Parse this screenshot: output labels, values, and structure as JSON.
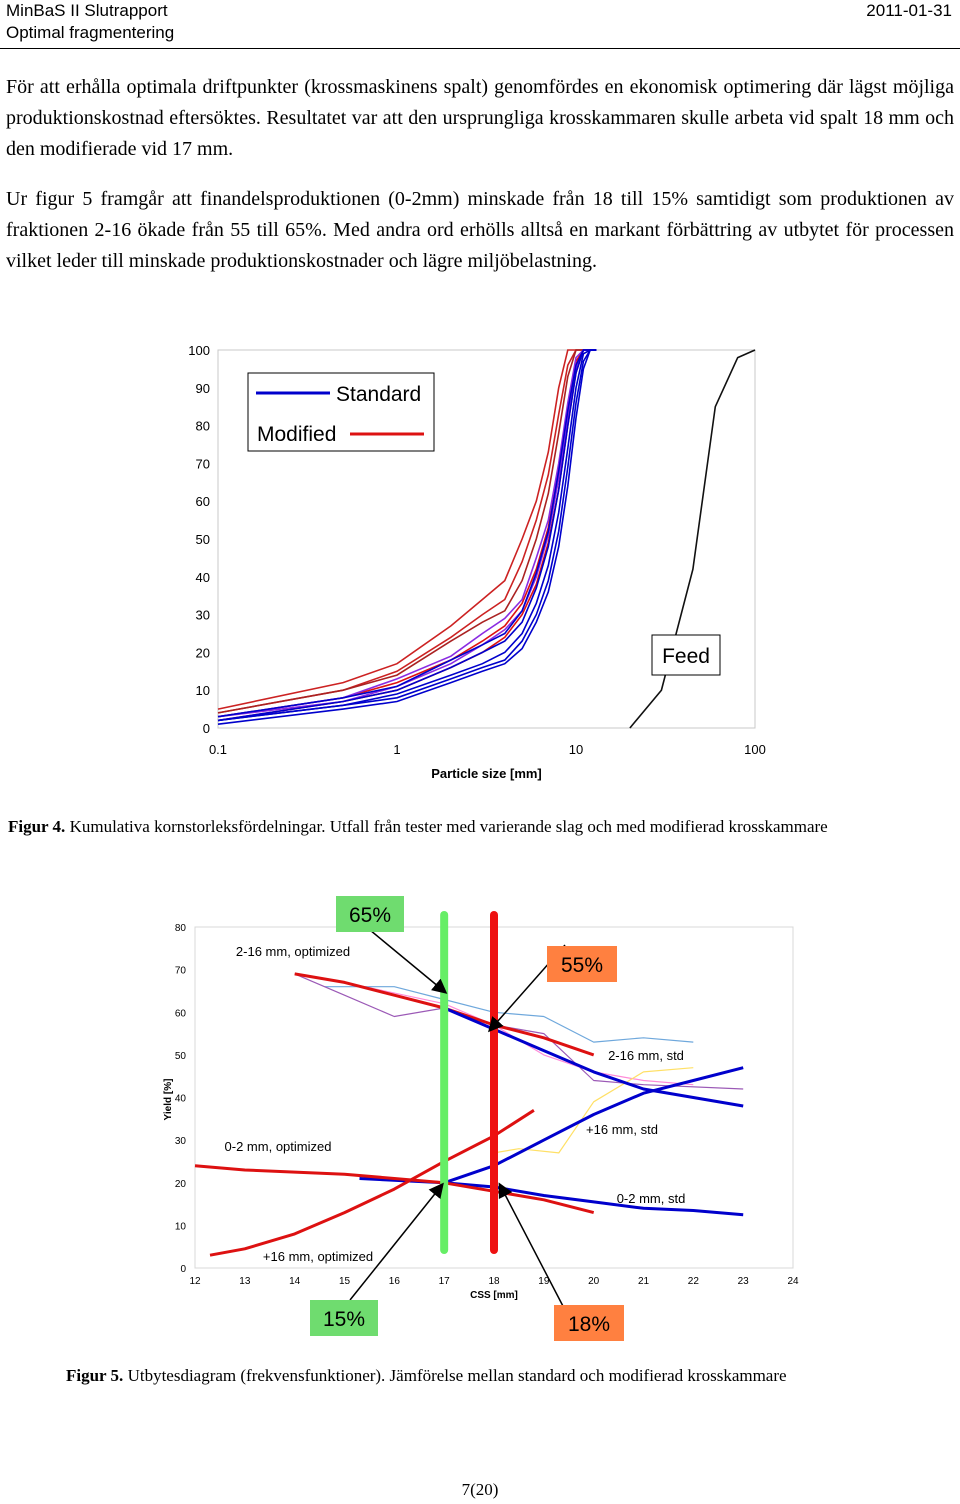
{
  "header": {
    "title": "MinBaS II Slutrapport",
    "subtitle": "Optimal fragmentering",
    "date": "2011-01-31"
  },
  "paragraphs": [
    "För att erhålla optimala driftpunkter (krossmaskinens spalt) genomfördes en ekonomisk optimering där lägst möjliga produktionskostnad eftersöktes. Resultatet var att den ursprungliga krosskammaren skulle arbeta vid spalt 18 mm och den modifierade vid 17 mm.",
    "Ur figur 5 framgår att finandelsproduktionen (0-2mm) minskade från 18 till 15% samtidigt som produktionen av fraktionen 2-16 ökade från 55 till 65%. Med andra ord erhölls alltså en markant förbättring av utbytet för processen vilket leder till minskade produktionskostnader och lägre miljöbelastning."
  ],
  "figure4": {
    "caption_label": "Figur 4.",
    "caption_text": " Kumulativa kornstorleksfördelningar. Utfall från tester med varierande slag och med modifierad krosskammare"
  },
  "figure5": {
    "caption_label": "Figur 5.",
    "caption_text": " Utbytesdiagram (frekvensfunktioner). Jämförelse mellan standard och modifierad krosskammare"
  },
  "chart_data": [
    {
      "type": "line",
      "xscale": "log",
      "xlim": [
        0.1,
        100
      ],
      "ylim": [
        0,
        100
      ],
      "xlabel": "Particle size [mm]",
      "ylabel": "",
      "x_ticks": [
        "0.1",
        "1",
        "10",
        "100"
      ],
      "y_ticks": [
        "0",
        "10",
        "20",
        "30",
        "40",
        "50",
        "60",
        "70",
        "80",
        "90",
        "100"
      ],
      "legend": {
        "entries": [
          "Standard",
          "Modified"
        ],
        "colors": {
          "Standard": "#0000cc",
          "Modified": "#dd1111"
        },
        "placement": "top-left"
      },
      "annotations": [
        "Feed"
      ],
      "x": [
        0.1,
        0.5,
        1,
        2,
        3,
        4,
        5,
        6,
        7,
        8,
        9,
        10,
        11,
        12,
        13
      ],
      "series": [
        {
          "color": "#cc2222",
          "values": [
            5,
            12,
            17,
            27,
            34,
            39,
            50,
            60,
            73,
            90,
            100,
            100,
            100,
            100,
            100
          ]
        },
        {
          "color": "#cc2222",
          "values": [
            4,
            10,
            15,
            24,
            30,
            34,
            44,
            55,
            67,
            83,
            96,
            100,
            100,
            100,
            100
          ]
        },
        {
          "color": "#aa2222",
          "values": [
            4,
            10,
            14,
            23,
            28,
            31,
            39,
            50,
            62,
            78,
            93,
            100,
            100,
            100,
            100
          ]
        },
        {
          "color": "#dd1111",
          "values": [
            3,
            8,
            12,
            18,
            23,
            27,
            33,
            42,
            53,
            68,
            85,
            97,
            100,
            100,
            100
          ]
        },
        {
          "color": "#dd1111",
          "values": [
            2,
            7,
            10,
            16,
            20,
            24,
            30,
            38,
            49,
            63,
            80,
            94,
            100,
            100,
            100
          ]
        },
        {
          "color": "#8a2be2",
          "values": [
            3,
            8,
            13,
            19,
            25,
            29,
            34,
            45,
            55,
            70,
            86,
            98,
            100,
            100,
            100
          ]
        },
        {
          "color": "#8a2be2",
          "values": [
            3,
            7,
            11,
            17,
            22,
            26,
            31,
            40,
            51,
            66,
            82,
            95,
            100,
            100,
            100
          ]
        },
        {
          "color": "#0000cc",
          "values": [
            3,
            8,
            11,
            18,
            22,
            25,
            31,
            41,
            52,
            68,
            84,
            96,
            100,
            100,
            100
          ]
        },
        {
          "color": "#0000cc",
          "values": [
            2,
            7,
            10,
            16,
            20,
            23,
            28,
            37,
            48,
            63,
            80,
            94,
            100,
            100,
            100
          ]
        },
        {
          "color": "#0000cc",
          "values": [
            2,
            6,
            9,
            14,
            17,
            20,
            25,
            33,
            43,
            57,
            74,
            90,
            99,
            100,
            100
          ]
        },
        {
          "color": "#0000cc",
          "values": [
            2,
            6,
            8,
            13,
            16,
            18,
            23,
            30,
            39,
            52,
            69,
            86,
            97,
            100,
            100
          ]
        },
        {
          "color": "#0000cc",
          "values": [
            1,
            5,
            7,
            12,
            15,
            17,
            21,
            28,
            36,
            48,
            64,
            82,
            95,
            100,
            100
          ]
        }
      ],
      "feed_series": {
        "name": "Feed",
        "color": "#111111",
        "x": [
          20,
          30,
          45,
          60,
          80,
          100
        ],
        "values": [
          0,
          10,
          42,
          85,
          98,
          100
        ]
      }
    },
    {
      "type": "line",
      "xlim": [
        12,
        24
      ],
      "ylim": [
        0,
        80
      ],
      "xlabel": "CSS [mm]",
      "ylabel": "Yield [%]",
      "x_ticks": [
        "12",
        "13",
        "14",
        "15",
        "16",
        "17",
        "18",
        "19",
        "20",
        "21",
        "22",
        "23",
        "24"
      ],
      "y_ticks": [
        "0",
        "10",
        "20",
        "30",
        "40",
        "50",
        "60",
        "70",
        "80"
      ],
      "labels": [
        "2-16 mm, optimized",
        "2-16 mm, std",
        "+16 mm, std",
        "0-2 mm, optimized",
        "0-2 mm, std",
        "+16 mm, optimized"
      ],
      "callouts": [
        {
          "text": "65%",
          "bg": "#6fdc6f"
        },
        {
          "text": "55%",
          "bg": "#ff8040"
        },
        {
          "text": "15%",
          "bg": "#6fdc6f"
        },
        {
          "text": "18%",
          "bg": "#ff8040"
        }
      ],
      "highlights": [
        {
          "color": "#66ee66",
          "x": 17
        },
        {
          "color": "#ee1111",
          "x": 18
        }
      ],
      "series": [
        {
          "color": "#dd1111",
          "x": [
            14,
            15,
            16,
            17,
            18,
            19,
            20
          ],
          "values": [
            69,
            67,
            64,
            61,
            57,
            54,
            50
          ]
        },
        {
          "color": "#0000cc",
          "x": [
            17,
            18,
            19,
            20,
            21,
            22,
            23
          ],
          "values": [
            61,
            56,
            51,
            46,
            42,
            40,
            38
          ]
        },
        {
          "color": "#0000cc",
          "x": [
            15.3,
            17,
            18,
            19,
            20,
            21,
            22,
            23
          ],
          "values": [
            21,
            20,
            24,
            30,
            36,
            41,
            44,
            47
          ]
        },
        {
          "color": "#dd1111",
          "x": [
            12.3,
            13,
            14,
            15,
            16,
            17,
            18,
            18.8
          ],
          "values": [
            3,
            4.5,
            8,
            13,
            18.5,
            25,
            31,
            37
          ]
        },
        {
          "color": "#0000cc",
          "x": [
            17,
            18,
            19,
            20,
            21,
            22,
            23
          ],
          "values": [
            20,
            19,
            17,
            15.5,
            14,
            13.5,
            12.5
          ]
        },
        {
          "color": "#dd1111",
          "x": [
            12,
            13,
            14,
            15,
            16,
            17,
            18,
            19,
            20
          ],
          "values": [
            24,
            23,
            22.5,
            22,
            21,
            20,
            18,
            16,
            13
          ]
        },
        {
          "color": "#6fa8dc",
          "x": [
            14.6,
            16,
            17,
            18,
            19,
            20,
            21,
            22
          ],
          "values": [
            66,
            66,
            63,
            60,
            59,
            53,
            54,
            53
          ]
        },
        {
          "color": "#9b59b6",
          "x": [
            14,
            15,
            16,
            17,
            18,
            19,
            20,
            21,
            23
          ],
          "values": [
            69,
            64,
            59,
            61,
            57,
            55,
            44,
            43,
            42
          ]
        },
        {
          "color": "#ff8ad8",
          "x": [
            15,
            17,
            18,
            19,
            20,
            21,
            22
          ],
          "values": [
            67,
            62,
            57,
            50,
            46,
            44,
            43
          ]
        },
        {
          "color": "#ffe066",
          "x": [
            18,
            18.5,
            19.3,
            20,
            21,
            22
          ],
          "values": [
            27,
            28,
            27,
            39,
            46,
            47
          ]
        }
      ]
    }
  ],
  "page_number": "7(20)"
}
